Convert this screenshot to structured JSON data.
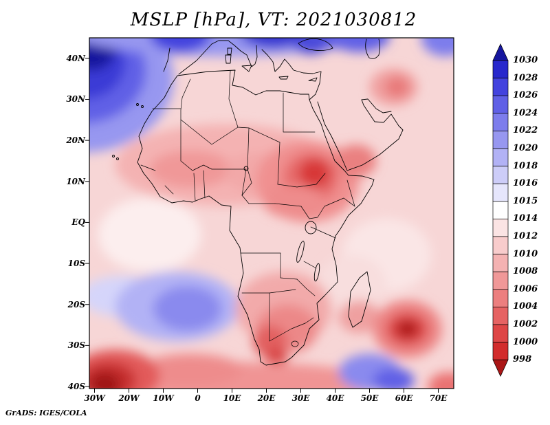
{
  "title": "MSLP [hPa], VT: 2021030812",
  "credit": "GrADS: IGES/COLA",
  "axes": {
    "lat_tick_labels": [
      "40N",
      "30N",
      "20N",
      "10N",
      "EQ",
      "10S",
      "20S",
      "30S",
      "40S"
    ],
    "lat_tick_values": [
      40,
      30,
      20,
      10,
      0,
      -10,
      -20,
      -30,
      -40
    ],
    "lon_tick_labels": [
      "30W",
      "20W",
      "10W",
      "0",
      "10E",
      "20E",
      "30E",
      "40E",
      "50E",
      "60E",
      "70E"
    ],
    "lon_tick_values": [
      -30,
      -20,
      -10,
      0,
      10,
      20,
      30,
      40,
      50,
      60,
      70
    ]
  },
  "colorbar": {
    "labels": [
      "1030",
      "1028",
      "1026",
      "1024",
      "1022",
      "1020",
      "1018",
      "1016",
      "1015",
      "1014",
      "1012",
      "1010",
      "1008",
      "1006",
      "1004",
      "1002",
      "1000",
      "998"
    ],
    "colors_top_to_bottom": [
      "#16169e",
      "#2828cc",
      "#4343de",
      "#6060e6",
      "#7d7dec",
      "#9797f0",
      "#b2b2f5",
      "#cdcdf8",
      "#e6e6fc",
      "#ffffff",
      "#fbe4e4",
      "#f8cccc",
      "#f4b2b2",
      "#f09898",
      "#ec7f7f",
      "#e66363",
      "#de4646",
      "#d22c2c",
      "#aa1616"
    ]
  },
  "chart_data": {
    "type": "heatmap",
    "title": "MSLP [hPa], VT: 2021030812",
    "variable": "mean sea level pressure",
    "units": "hPa",
    "valid_time": "2021030812",
    "source_credit": "GrADS: IGES/COLA",
    "x": {
      "label": "longitude",
      "range": [
        -31.5,
        74.5
      ],
      "tick_labels": [
        "30W",
        "20W",
        "10W",
        "0",
        "10E",
        "20E",
        "30E",
        "40E",
        "50E",
        "60E",
        "70E"
      ]
    },
    "y": {
      "label": "latitude",
      "range": [
        -40.5,
        45
      ],
      "tick_labels": [
        "40S",
        "30S",
        "20S",
        "10S",
        "EQ",
        "10N",
        "20N",
        "30N",
        "40N"
      ]
    },
    "levels_hpa": [
      998,
      1000,
      1002,
      1004,
      1006,
      1008,
      1010,
      1012,
      1014,
      1015,
      1016,
      1018,
      1020,
      1022,
      1024,
      1026,
      1028,
      1030
    ],
    "palette_top_to_bottom": [
      "#16169e",
      "#2828cc",
      "#4343de",
      "#6060e6",
      "#7d7dec",
      "#9797f0",
      "#b2b2f5",
      "#cdcdf8",
      "#e6e6fc",
      "#ffffff",
      "#fbe4e4",
      "#f8cccc",
      "#f4b2b2",
      "#f09898",
      "#ec7f7f",
      "#e66363",
      "#de4646",
      "#d22c2c",
      "#aa1616"
    ],
    "base_color": "#f7d6d6",
    "legend_position": "right",
    "grid": false,
    "extrema": [
      {
        "kind": "high",
        "lon": -33,
        "lat": 39,
        "approx_hpa": 1031,
        "label": "NE Atlantic / Azores high"
      },
      {
        "kind": "high",
        "lon": 22,
        "lat": 47,
        "approx_hpa": 1027,
        "label": "European high"
      },
      {
        "kind": "high",
        "lon": -3,
        "lat": -21,
        "approx_hpa": 1021,
        "label": "South Atlantic high"
      },
      {
        "kind": "low",
        "lon": 33,
        "lat": 11,
        "approx_hpa": 1002,
        "label": "Sudan heat low"
      },
      {
        "kind": "low",
        "lon": 61,
        "lat": -26,
        "approx_hpa": 998,
        "label": "SW Indian Ocean low"
      },
      {
        "kind": "low",
        "lon": -27,
        "lat": -39,
        "approx_hpa": 997,
        "label": "Southern Atlantic storm low"
      }
    ],
    "field_features": [
      {
        "lon": -34,
        "lat": 35,
        "rx_deg": 27,
        "ry_deg": 18,
        "color": "#9797f0",
        "approx_hpa": 1020
      },
      {
        "lon": -34,
        "lat": 37,
        "rx_deg": 19,
        "ry_deg": 13,
        "color": "#6060e6",
        "approx_hpa": 1024
      },
      {
        "lon": -33,
        "lat": 39,
        "rx_deg": 12,
        "ry_deg": 9,
        "color": "#3a3ad6",
        "approx_hpa": 1027
      },
      {
        "lon": -31,
        "lat": 43,
        "rx_deg": 7.5,
        "ry_deg": 6,
        "color": "#16169e",
        "approx_hpa": 1031
      },
      {
        "lon": 8,
        "lat": 47,
        "rx_deg": 46,
        "ry_deg": 6.5,
        "color": "#9797f0",
        "approx_hpa": 1020
      },
      {
        "lon": -5,
        "lat": 46,
        "rx_deg": 9,
        "ry_deg": 4.5,
        "color": "#4343de",
        "approx_hpa": 1026
      },
      {
        "lon": 22,
        "lat": 47,
        "rx_deg": 10,
        "ry_deg": 4.5,
        "color": "#3434d0",
        "approx_hpa": 1027
      },
      {
        "lon": 40,
        "lat": 46,
        "rx_deg": 8,
        "ry_deg": 3.5,
        "color": "#5a5ae2",
        "approx_hpa": 1024
      },
      {
        "lon": 47,
        "lat": 45.5,
        "rx_deg": 9,
        "ry_deg": 4,
        "color": "#6060e6",
        "approx_hpa": 1024
      },
      {
        "lon": 72,
        "lat": 45,
        "rx_deg": 7,
        "ry_deg": 4.5,
        "color": "#7d7dec",
        "approx_hpa": 1022
      },
      {
        "lon": 33,
        "lat": 43.5,
        "rx_deg": 5,
        "ry_deg": 2.5,
        "color": "#4a4ada",
        "approx_hpa": 1025
      },
      {
        "lon": -14,
        "lat": -3,
        "rx_deg": 15,
        "ry_deg": 9,
        "color": "#fceeee",
        "approx_hpa": 1012
      },
      {
        "lon": 55,
        "lat": -8,
        "rx_deg": 13,
        "ry_deg": 9,
        "color": "#fae6e6",
        "approx_hpa": 1011
      },
      {
        "lon": 45,
        "lat": -15,
        "rx_deg": 10,
        "ry_deg": 7,
        "color": "#f8dede",
        "approx_hpa": 1010
      },
      {
        "lon": -22,
        "lat": -18,
        "rx_deg": 12,
        "ry_deg": 5,
        "color": "#d5d5fa",
        "approx_hpa": 1016
      },
      {
        "lon": -6,
        "lat": -20.5,
        "rx_deg": 18,
        "ry_deg": 8.5,
        "color": "#b2b2f5",
        "approx_hpa": 1018
      },
      {
        "lon": -3,
        "lat": -21,
        "rx_deg": 10,
        "ry_deg": 5.5,
        "color": "#8a8aee",
        "approx_hpa": 1021
      },
      {
        "lon": 8,
        "lat": 14,
        "rx_deg": 32,
        "ry_deg": 10,
        "color": "#f4b2b2",
        "approx_hpa": 1008
      },
      {
        "lon": -2,
        "lat": 13,
        "rx_deg": 12,
        "ry_deg": 4.5,
        "color": "#f09898",
        "approx_hpa": 1007
      },
      {
        "lon": 18,
        "lat": 12,
        "rx_deg": 10,
        "ry_deg": 5,
        "color": "#f2a8a8",
        "approx_hpa": 1008
      },
      {
        "lon": 32,
        "lat": 10,
        "rx_deg": 15,
        "ry_deg": 10,
        "color": "#f09090",
        "approx_hpa": 1006
      },
      {
        "lon": 33,
        "lat": 11,
        "rx_deg": 8,
        "ry_deg": 6,
        "color": "#e66a6a",
        "approx_hpa": 1004
      },
      {
        "lon": 34,
        "lat": 12,
        "rx_deg": 4.5,
        "ry_deg": 3.5,
        "color": "#d83838",
        "approx_hpa": 1001
      },
      {
        "lon": 28,
        "lat": 5,
        "rx_deg": 9,
        "ry_deg": 4,
        "color": "#ee8c8c",
        "approx_hpa": 1006
      },
      {
        "lon": 46,
        "lat": 15,
        "rx_deg": 6,
        "ry_deg": 4,
        "color": "#ea8080",
        "approx_hpa": 1005
      },
      {
        "lon": 57,
        "lat": 33,
        "rx_deg": 7,
        "ry_deg": 4.5,
        "color": "#f0a0a0",
        "approx_hpa": 1007
      },
      {
        "lon": 58,
        "lat": 33,
        "rx_deg": 3.5,
        "ry_deg": 2.5,
        "color": "#e87878",
        "approx_hpa": 1005
      },
      {
        "lon": 25,
        "lat": -21,
        "rx_deg": 14,
        "ry_deg": 9,
        "color": "#f2aaaa",
        "approx_hpa": 1008
      },
      {
        "lon": 26,
        "lat": -26,
        "rx_deg": 9,
        "ry_deg": 6,
        "color": "#ec8888",
        "approx_hpa": 1005
      },
      {
        "lon": 21,
        "lat": -29,
        "rx_deg": 5,
        "ry_deg": 4,
        "color": "#e26060",
        "approx_hpa": 1003
      },
      {
        "lon": 23,
        "lat": -33,
        "rx_deg": 3,
        "ry_deg": 2.5,
        "color": "#d84444",
        "approx_hpa": 1001
      },
      {
        "lon": 47,
        "lat": -23,
        "rx_deg": 6,
        "ry_deg": 4,
        "color": "#efa0a0",
        "approx_hpa": 1007
      },
      {
        "lon": 61,
        "lat": -26,
        "rx_deg": 10,
        "ry_deg": 7,
        "color": "#ec8484",
        "approx_hpa": 1005
      },
      {
        "lon": 61,
        "lat": -26,
        "rx_deg": 6,
        "ry_deg": 4,
        "color": "#dc4444",
        "approx_hpa": 1001
      },
      {
        "lon": 61,
        "lat": -26,
        "rx_deg": 3,
        "ry_deg": 2,
        "color": "#ac1818",
        "approx_hpa": 998
      },
      {
        "lon": 8,
        "lat": -39,
        "rx_deg": 46,
        "ry_deg": 5,
        "color": "#f09494",
        "approx_hpa": 1006
      },
      {
        "lon": -2,
        "lat": -36,
        "rx_deg": 15,
        "ry_deg": 4,
        "color": "#ee8c8c",
        "approx_hpa": 1006
      },
      {
        "lon": 50,
        "lat": -36.5,
        "rx_deg": 9,
        "ry_deg": 4.5,
        "color": "#8a8aee",
        "approx_hpa": 1021
      },
      {
        "lon": 57,
        "lat": -38.5,
        "rx_deg": 6,
        "ry_deg": 3,
        "color": "#6060e6",
        "approx_hpa": 1023
      },
      {
        "lon": -24,
        "lat": -37.5,
        "rx_deg": 13,
        "ry_deg": 6.5,
        "color": "#e25a5a",
        "approx_hpa": 1002
      },
      {
        "lon": -26,
        "lat": -38.5,
        "rx_deg": 8,
        "ry_deg": 4.5,
        "color": "#c62e2e",
        "approx_hpa": 1000
      },
      {
        "lon": -27,
        "lat": -39.5,
        "rx_deg": 4.5,
        "ry_deg": 3,
        "color": "#a01616",
        "approx_hpa": 997
      },
      {
        "lon": 73,
        "lat": -40,
        "rx_deg": 6,
        "ry_deg": 3.5,
        "color": "#ea7272",
        "approx_hpa": 1004
      }
    ]
  }
}
